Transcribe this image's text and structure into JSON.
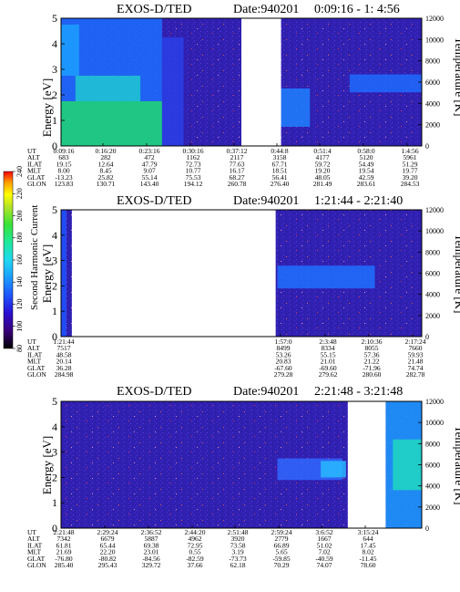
{
  "colorbar": {
    "label": "Second Harmonic Current",
    "ticks": [
      "240",
      "220",
      "200",
      "180",
      "160",
      "140",
      "120",
      "100",
      "80"
    ],
    "colors": [
      "#000000",
      "#3a007a",
      "#2a0fd0",
      "#1f55ff",
      "#1c9cff",
      "#20d8f0",
      "#20e89a",
      "#38e238",
      "#b2e428",
      "#ffff00",
      "#ff9a00",
      "#ff0000"
    ]
  },
  "chart_data": [
    {
      "type": "heatmap",
      "title": "EXOS-D/TED",
      "date_label": "Date:940201",
      "time_range": "0:09:16 - 1: 4:56",
      "ylabel": "Energy [eV]",
      "y2label": "Temperature [K]",
      "ylim": [
        0,
        5
      ],
      "y_ticks": [
        "0",
        "1",
        "2",
        "3",
        "4",
        "5"
      ],
      "y2lim": [
        0,
        12000
      ],
      "y2_ticks": [
        "0",
        "2000",
        "4000",
        "6000",
        "8000",
        "10000",
        "12000"
      ],
      "orbit_table": {
        "labels": [
          "UT",
          "ALT",
          "ILAT",
          "MLT",
          "GLAT",
          "GLON"
        ],
        "columns": [
          [
            "0:09:16",
            "683",
            "19.15",
            "8.00",
            "-13.23",
            "123.83"
          ],
          [
            "0:16:20",
            "282",
            "12.64",
            "8.45",
            "25.82",
            "130.71"
          ],
          [
            "0:23:16",
            "472",
            "47.79",
            "9.07",
            "55.14",
            "143.40"
          ],
          [
            "0:30:16",
            "1162",
            "72.73",
            "10.77",
            "75.53",
            "194.12"
          ],
          [
            "0:37:12",
            "2117",
            "77.63",
            "16.17",
            "68.27",
            "260.78"
          ],
          [
            "0:44:8",
            "3158",
            "67.71",
            "18.51",
            "56.41",
            "276.40"
          ],
          [
            "0:51:4",
            "4177",
            "59.72",
            "19.20",
            "48.05",
            "281.49"
          ],
          [
            "0:58:0",
            "5120",
            "54.49",
            "19.54",
            "42.59",
            "283.61"
          ],
          [
            "1:4:56",
            "5961",
            "51.29",
            "19.77",
            "39.20",
            "284.53"
          ]
        ]
      },
      "data_gaps": [
        [
          0.5,
          0.61
        ]
      ]
    },
    {
      "type": "heatmap",
      "title": "EXOS-D/TED",
      "date_label": "Date:940201",
      "time_range": "1:21:44 - 2:21:40",
      "ylabel": "Energy [eV]",
      "y2label": "Temperature [K]",
      "ylim": [
        0,
        5
      ],
      "y_ticks": [
        "0",
        "1",
        "2",
        "3",
        "4",
        "5"
      ],
      "y2lim": [
        0,
        12000
      ],
      "y2_ticks": [
        "0",
        "2000",
        "4000",
        "6000",
        "8000",
        "10000",
        "12000"
      ],
      "orbit_table": {
        "labels": [
          "UT",
          "ALT",
          "ILAT",
          "MLT",
          "GLAT",
          "GLON"
        ],
        "columns": [
          [
            "1:21:44",
            "7517",
            "48.58",
            "20.14",
            "36.28",
            "284.98"
          ],
          [
            "1:57:0",
            "8499",
            "53.26",
            "20.83",
            "-67.60",
            "279.28"
          ],
          [
            "2:3:48",
            "8334",
            "55.15",
            "21.01",
            "-69.60",
            "279.62"
          ],
          [
            "2:10:36",
            "8055",
            "57.36",
            "21.22",
            "-71.96",
            "280.60"
          ],
          [
            "2:17:24",
            "7660",
            "59.93",
            "21.48",
            "74.74",
            "282.78"
          ]
        ]
      },
      "data_gaps": [
        [
          0.03,
          0.595
        ]
      ]
    },
    {
      "type": "heatmap",
      "title": "EXOS-D/TED",
      "date_label": "Date:940201",
      "time_range": "2:21:48 - 3:21:48",
      "ylabel": "Energy [eV]",
      "y2label": "Temperature [K]",
      "ylim": [
        0,
        5
      ],
      "y_ticks": [
        "0",
        "1",
        "2",
        "3",
        "4",
        "5"
      ],
      "y2lim": [
        0,
        12000
      ],
      "y2_ticks": [
        "0",
        "2000",
        "4000",
        "6000",
        "8000",
        "10000",
        "12000"
      ],
      "orbit_table": {
        "labels": [
          "UT",
          "ALT",
          "ILAT",
          "MLT",
          "GLAT",
          "GLON"
        ],
        "columns": [
          [
            "2:21:48",
            "7342",
            "61.81",
            "21.69",
            "-76.80",
            "285.40"
          ],
          [
            "2:29:24",
            "6679",
            "65.44",
            "22.20",
            "-80.82",
            "295.43"
          ],
          [
            "2:36:52",
            "5887",
            "69.38",
            "23.01",
            "-84.56",
            "329.72"
          ],
          [
            "2:44:20",
            "4962",
            "72.95",
            "0.55",
            "-82.59",
            "37.66"
          ],
          [
            "2:51:48",
            "3920",
            "73.58",
            "3.19",
            "-73.73",
            "62.18"
          ],
          [
            "2:59:24",
            "2779",
            "66.89",
            "5.65",
            "-59.85",
            "70.29"
          ],
          [
            "3:6:52",
            "1667",
            "51.02",
            "7.02",
            "-40.59",
            "74.07"
          ],
          [
            "3:15:24",
            "644",
            "17.45",
            "8.02",
            "-11.45",
            "78.60"
          ]
        ]
      },
      "data_gaps": [
        [
          0.795,
          0.9
        ]
      ]
    }
  ]
}
